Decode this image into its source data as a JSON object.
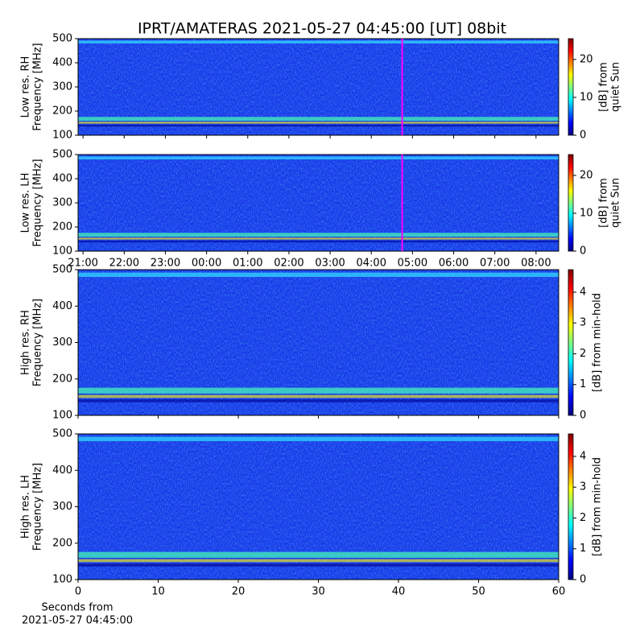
{
  "title": "IPRT/AMATERAS 2021-05-27 04:45:00 [UT]   08bit",
  "chart_data": [
    {
      "type": "heatmap",
      "ylabel": [
        "Low res. RH",
        "Frequency [MHz]"
      ],
      "ylim": [
        100,
        500
      ],
      "yticks": [
        100,
        200,
        300,
        400,
        500
      ],
      "xlim": [
        20.88,
        32.55
      ],
      "xticks": [
        {
          "value": 21,
          "label": "21:00"
        },
        {
          "value": 22,
          "label": "22:00"
        },
        {
          "value": 23,
          "label": "23:00"
        },
        {
          "value": 24,
          "label": "00:00"
        },
        {
          "value": 25,
          "label": "01:00"
        },
        {
          "value": 26,
          "label": "02:00"
        },
        {
          "value": 27,
          "label": "03:00"
        },
        {
          "value": 28,
          "label": "04:00"
        },
        {
          "value": 29,
          "label": "05:00"
        },
        {
          "value": 30,
          "label": "06:00"
        },
        {
          "value": 31,
          "label": "07:00"
        },
        {
          "value": 32,
          "label": "08:00"
        }
      ],
      "show_xtick_labels": false,
      "cursor": 28.75,
      "cursor_color": "#ff00ff",
      "colorbar": {
        "label": [
          "[dB] from",
          "quiet Sun"
        ],
        "lim": [
          0,
          25.5
        ],
        "ticks": [
          0,
          10,
          20
        ]
      }
    },
    {
      "type": "heatmap",
      "ylabel": [
        "Low res. LH",
        "Frequency [MHz]"
      ],
      "ylim": [
        100,
        500
      ],
      "yticks": [
        100,
        200,
        300,
        400,
        500
      ],
      "xlim": [
        20.88,
        32.55
      ],
      "xticks": [
        {
          "value": 21,
          "label": "21:00"
        },
        {
          "value": 22,
          "label": "22:00"
        },
        {
          "value": 23,
          "label": "23:00"
        },
        {
          "value": 24,
          "label": "00:00"
        },
        {
          "value": 25,
          "label": "01:00"
        },
        {
          "value": 26,
          "label": "02:00"
        },
        {
          "value": 27,
          "label": "03:00"
        },
        {
          "value": 28,
          "label": "04:00"
        },
        {
          "value": 29,
          "label": "05:00"
        },
        {
          "value": 30,
          "label": "06:00"
        },
        {
          "value": 31,
          "label": "07:00"
        },
        {
          "value": 32,
          "label": "08:00"
        }
      ],
      "show_xtick_labels": true,
      "cursor": 28.75,
      "cursor_color": "#ff00ff",
      "colorbar": {
        "label": [
          "[dB] from",
          "quiet Sun"
        ],
        "lim": [
          0,
          25.5
        ],
        "ticks": [
          0,
          10,
          20
        ]
      }
    },
    {
      "type": "heatmap",
      "ylabel": [
        "High res. RH",
        "Frequency [MHz]"
      ],
      "ylim": [
        100,
        500
      ],
      "yticks": [
        100,
        200,
        300,
        400,
        500
      ],
      "xlim": [
        0,
        60
      ],
      "xticks": [
        0,
        10,
        20,
        30,
        40,
        50,
        60
      ],
      "show_xtick_labels": false,
      "colorbar": {
        "label": [
          "[dB] from min-hold"
        ],
        "lim": [
          0,
          4.73
        ],
        "ticks": [
          0,
          1,
          2,
          3,
          4
        ]
      }
    },
    {
      "type": "heatmap",
      "ylabel": [
        "High res. LH",
        "Frequency [MHz]"
      ],
      "ylim": [
        100,
        500
      ],
      "yticks": [
        100,
        200,
        300,
        400,
        500
      ],
      "xlim": [
        0,
        60
      ],
      "xticks": [
        0,
        10,
        20,
        30,
        40,
        50,
        60
      ],
      "show_xtick_labels": true,
      "xlabel": [
        "Seconds from",
        "2021-05-27 04:45:00"
      ],
      "colorbar": {
        "label": [
          "[dB] from min-hold"
        ],
        "lim": [
          0,
          4.73
        ],
        "ticks": [
          0,
          1,
          2,
          3,
          4
        ]
      }
    }
  ]
}
